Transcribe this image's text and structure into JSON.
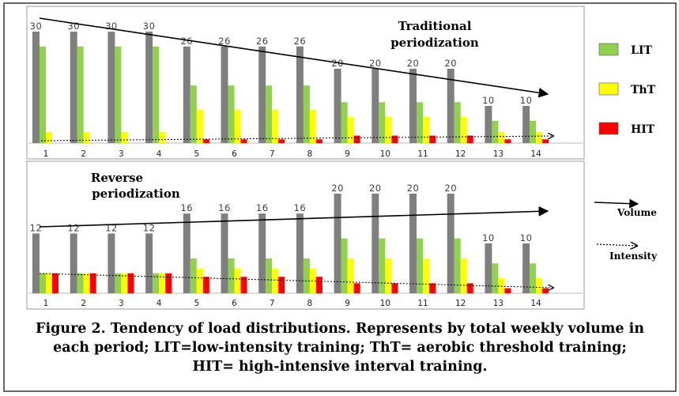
{
  "legend": [
    {
      "label": "LIT",
      "color": "#92d050"
    },
    {
      "label": "ThT",
      "color": "#ffff00"
    },
    {
      "label": "HIT",
      "color": "#ff0000"
    }
  ],
  "arrow_legend": {
    "volume": "Volume",
    "intensity": "Intensity"
  },
  "caption": "Figure 2. Tendency of load distributions. Represents by total weekly volume in each period; LIT=low-intensity training; ThT= aerobic threshold training; HIT= high-intensive interval training.",
  "colors": {
    "total": "#7f7f7f",
    "LIT": "#92d050",
    "ThT": "#ffff00",
    "HIT": "#ff0000"
  },
  "chart_data": [
    {
      "type": "bar",
      "title": "Traditional periodization",
      "categories": [
        "1",
        "2",
        "3",
        "4",
        "5",
        "6",
        "7",
        "8",
        "9",
        "10",
        "11",
        "12",
        "13",
        "14"
      ],
      "series": [
        {
          "name": "",
          "values": [
            30,
            30,
            30,
            30,
            26,
            26,
            26,
            26,
            20,
            20,
            20,
            20,
            10,
            10
          ]
        },
        {
          "name": "LIT",
          "values": [
            26,
            26,
            26,
            26,
            15.5,
            15.5,
            15.5,
            15.5,
            11,
            11,
            11,
            11,
            6,
            6
          ]
        },
        {
          "name": "ThT",
          "values": [
            3,
            3,
            3,
            3,
            9,
            9,
            9,
            9,
            7,
            7,
            7,
            7,
            3,
            3
          ]
        },
        {
          "name": "HIT",
          "values": [
            0,
            0,
            0,
            0,
            1,
            1,
            1,
            1,
            2,
            2,
            2,
            2,
            1,
            1
          ]
        }
      ],
      "data_labels": [
        30,
        30,
        30,
        30,
        26,
        26,
        26,
        26,
        20,
        20,
        20,
        20,
        10,
        10
      ],
      "trend_lines": [
        "Volume",
        "Intensity"
      ],
      "ylim": [
        0,
        33
      ]
    },
    {
      "type": "bar",
      "title": "Reverse periodization",
      "categories": [
        "1",
        "2",
        "3",
        "4",
        "5",
        "6",
        "7",
        "8",
        "9",
        "10",
        "11",
        "12",
        "13",
        "14"
      ],
      "series": [
        {
          "name": "",
          "values": [
            12,
            12,
            12,
            12,
            16,
            16,
            16,
            16,
            20,
            20,
            20,
            20,
            10,
            10
          ]
        },
        {
          "name": "LIT",
          "values": [
            4,
            4,
            4,
            4,
            7,
            7,
            7,
            7,
            11,
            11,
            11,
            11,
            6,
            6
          ]
        },
        {
          "name": "ThT",
          "values": [
            4,
            4,
            4,
            4,
            5,
            5,
            5,
            5,
            7,
            7,
            7,
            7,
            3,
            3
          ]
        },
        {
          "name": "HIT",
          "values": [
            4,
            4,
            4,
            4,
            3.3,
            3.3,
            3.3,
            3.3,
            2,
            2,
            2,
            2,
            1,
            1
          ]
        }
      ],
      "data_labels": [
        12,
        12,
        12,
        12,
        16,
        16,
        16,
        16,
        20,
        20,
        20,
        20,
        10,
        10
      ],
      "trend_lines": [
        "Volume",
        "Intensity"
      ],
      "ylim": [
        0,
        22
      ]
    }
  ]
}
